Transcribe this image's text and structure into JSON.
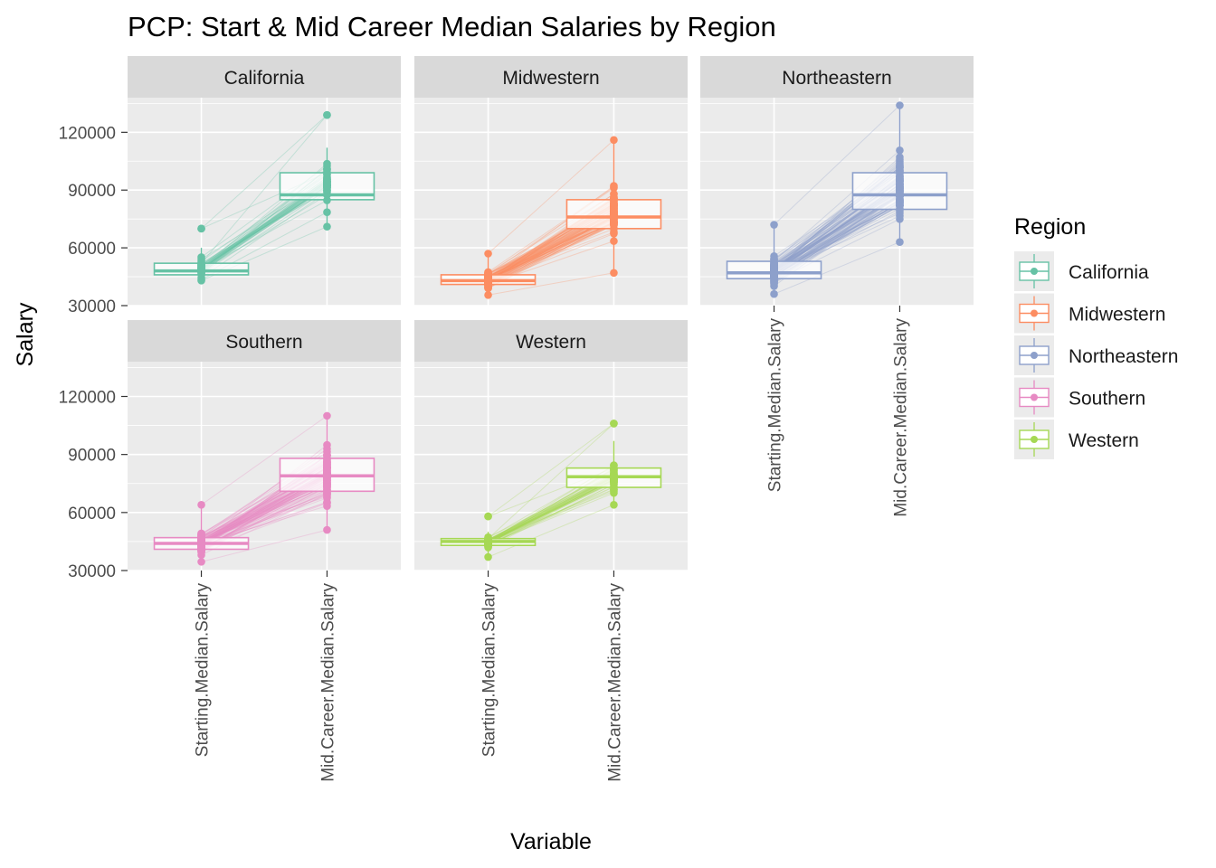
{
  "chart_data": {
    "type": "parallel-coordinates-boxplot",
    "title": "PCP: Start & Mid Career Median Salaries by Region",
    "xlabel": "Variable",
    "ylabel": "Salary",
    "categories": [
      "Starting.Median.Salary",
      "Mid.Career.Median.Salary"
    ],
    "yticks": [
      30000,
      60000,
      90000,
      120000
    ],
    "ylim": [
      30000,
      138000
    ],
    "grid": true,
    "legend": {
      "title": "Region",
      "position": "right",
      "entries": [
        "California",
        "Midwestern",
        "Northeastern",
        "Southern",
        "Western"
      ]
    },
    "panels": [
      {
        "name": "California",
        "color": "#66c2a5",
        "start_box": {
          "q1": 46000,
          "median": 48000,
          "q3": 52000,
          "min": 43000,
          "max": 60000
        },
        "start_outliers": [
          70000
        ],
        "mid_box": {
          "q1": 85000,
          "median": 87500,
          "q3": 99000,
          "min": 71000,
          "max": 112000
        },
        "mid_outliers": [
          129000
        ],
        "start_range": [
          43000,
          70000
        ],
        "mid_range": [
          71000,
          129000
        ],
        "n_lines": 45
      },
      {
        "name": "Midwestern",
        "color": "#fc8d62",
        "start_box": {
          "q1": 41000,
          "median": 43000,
          "q3": 46000,
          "min": 35500,
          "max": 57000
        },
        "start_outliers": [],
        "mid_box": {
          "q1": 70000,
          "median": 76000,
          "q3": 85000,
          "min": 47000,
          "max": 116000
        },
        "mid_outliers": [],
        "start_range": [
          35500,
          57000
        ],
        "mid_range": [
          47000,
          116000
        ],
        "n_lines": 90
      },
      {
        "name": "Northeastern",
        "color": "#8da0cb",
        "start_box": {
          "q1": 44000,
          "median": 47000,
          "q3": 53000,
          "min": 36000,
          "max": 72000
        },
        "start_outliers": [],
        "mid_box": {
          "q1": 80000,
          "median": 87500,
          "q3": 99000,
          "min": 63000,
          "max": 134000
        },
        "mid_outliers": [],
        "start_range": [
          36000,
          72000
        ],
        "mid_range": [
          63000,
          134000
        ],
        "n_lines": 100
      },
      {
        "name": "Southern",
        "color": "#e78ac3",
        "start_box": {
          "q1": 41000,
          "median": 44000,
          "q3": 47000,
          "min": 34500,
          "max": 64000
        },
        "start_outliers": [],
        "mid_box": {
          "q1": 71000,
          "median": 79000,
          "q3": 88000,
          "min": 51000,
          "max": 110000
        },
        "mid_outliers": [],
        "start_range": [
          34500,
          64000
        ],
        "mid_range": [
          51000,
          110000
        ],
        "n_lines": 100
      },
      {
        "name": "Western",
        "color": "#a6d854",
        "start_box": {
          "q1": 43000,
          "median": 45000,
          "q3": 46500,
          "min": 37000,
          "max": 50000
        },
        "start_outliers": [
          58000
        ],
        "mid_box": {
          "q1": 73000,
          "median": 78500,
          "q3": 83000,
          "min": 64000,
          "max": 97000
        },
        "mid_outliers": [
          106000
        ],
        "start_range": [
          37000,
          58000
        ],
        "mid_range": [
          64000,
          106000
        ],
        "n_lines": 45
      }
    ]
  }
}
